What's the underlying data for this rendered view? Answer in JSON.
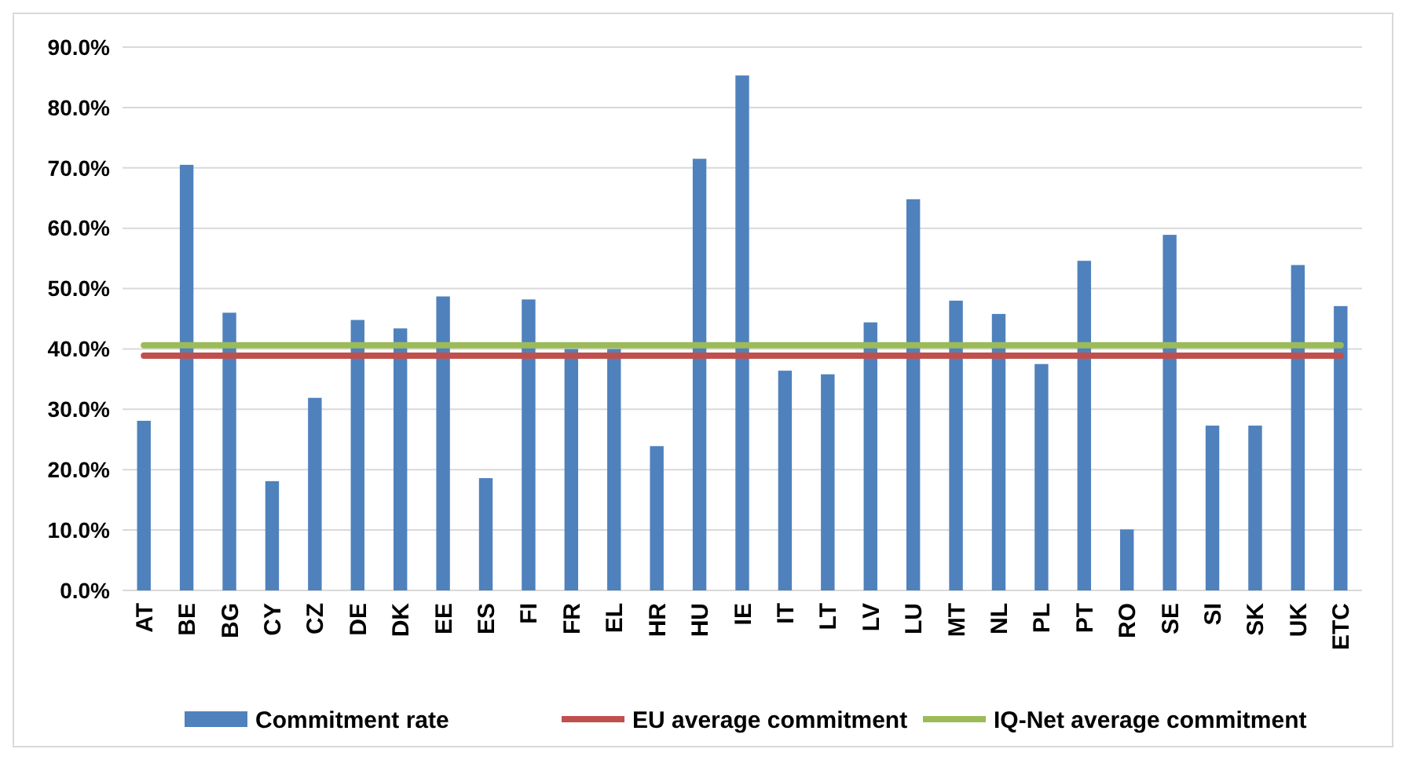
{
  "chart_data": {
    "type": "bar",
    "categories": [
      "AT",
      "BE",
      "BG",
      "CY",
      "CZ",
      "DE",
      "DK",
      "EE",
      "ES",
      "FI",
      "FR",
      "EL",
      "HR",
      "HU",
      "IE",
      "IT",
      "LT",
      "LV",
      "LU",
      "MT",
      "NL",
      "PL",
      "PT",
      "RO",
      "SE",
      "SI",
      "SK",
      "UK",
      "ETC"
    ],
    "series": [
      {
        "name": "Commitment rate",
        "color": "#4f81bd",
        "values": [
          28.1,
          70.5,
          46.0,
          18.1,
          31.9,
          44.8,
          43.4,
          48.7,
          18.6,
          48.2,
          40.0,
          40.0,
          23.9,
          71.5,
          85.3,
          36.4,
          35.8,
          44.4,
          64.8,
          48.0,
          45.8,
          37.5,
          54.6,
          10.1,
          58.9,
          27.3,
          27.3,
          53.9,
          47.1
        ]
      },
      {
        "name": "EU average commitment",
        "color": "#c0504d",
        "type": "line",
        "values": [
          38.9,
          38.9,
          38.9,
          38.9,
          38.9,
          38.9,
          38.9,
          38.9,
          38.9,
          38.9,
          38.9,
          38.9,
          38.9,
          38.9,
          38.9,
          38.9,
          38.9,
          38.9,
          38.9,
          38.9,
          38.9,
          38.9,
          38.9,
          38.9,
          38.9,
          38.9,
          38.9,
          38.9,
          38.9
        ]
      },
      {
        "name": "IQ-Net average commitment",
        "color": "#9bbb59",
        "type": "line",
        "values": [
          40.6,
          40.6,
          40.6,
          40.6,
          40.6,
          40.6,
          40.6,
          40.6,
          40.6,
          40.6,
          40.6,
          40.6,
          40.6,
          40.6,
          40.6,
          40.6,
          40.6,
          40.6,
          40.6,
          40.6,
          40.6,
          40.6,
          40.6,
          40.6,
          40.6,
          40.6,
          40.6,
          40.6,
          40.6
        ]
      }
    ],
    "ylim": [
      0,
      90
    ],
    "yticks": [
      {
        "value": 0,
        "label": "0.0%"
      },
      {
        "value": 10,
        "label": "10.0%"
      },
      {
        "value": 20,
        "label": "20.0%"
      },
      {
        "value": 30,
        "label": "30.0%"
      },
      {
        "value": 40,
        "label": "40.0%"
      },
      {
        "value": 50,
        "label": "50.0%"
      },
      {
        "value": 60,
        "label": "60.0%"
      },
      {
        "value": 70,
        "label": "70.0%"
      },
      {
        "value": 80,
        "label": "80.0%"
      },
      {
        "value": 90,
        "label": "90.0%"
      }
    ],
    "grid": "y",
    "legend": "bottom"
  }
}
